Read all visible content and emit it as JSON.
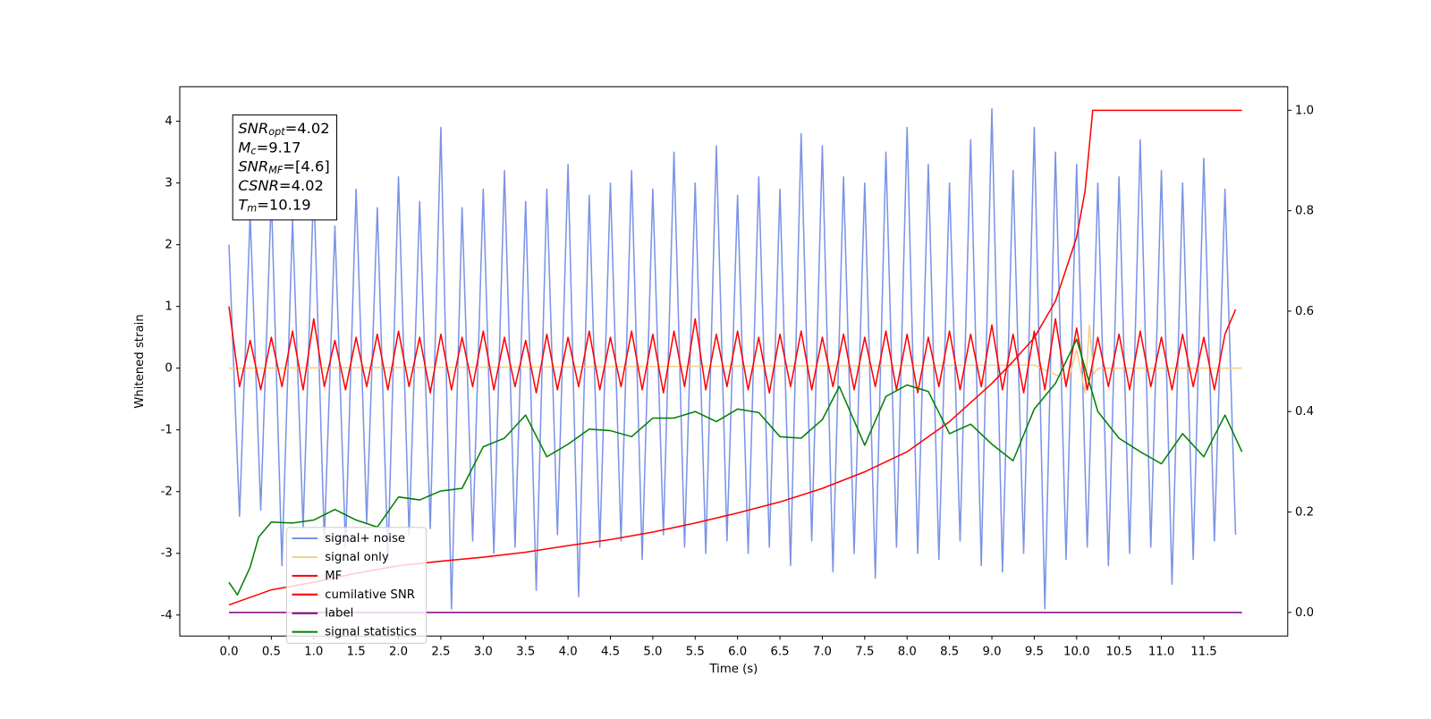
{
  "chart_data": {
    "type": "line",
    "xlabel": "Time (s)",
    "ylabel": "Whitened strain",
    "xlim": [
      -0.58,
      12.49
    ],
    "ylim": [
      -4.34,
      4.56
    ],
    "y2lim": [
      -0.047,
      1.047
    ],
    "xticks": [
      {
        "value": 0,
        "label": "0.0"
      },
      0.5,
      {
        "value": 1,
        "label": "1.0"
      },
      1.5,
      {
        "value": 2,
        "label": "2.0"
      },
      2.5,
      {
        "value": 3,
        "label": "3.0"
      },
      3.5,
      {
        "value": 4,
        "label": "4.0"
      },
      4.5,
      {
        "value": 5,
        "label": "5.0"
      },
      5.5,
      {
        "value": 6,
        "label": "6.0"
      },
      6.5,
      {
        "value": 7,
        "label": "7.0"
      },
      7.5,
      {
        "value": 8,
        "label": "8.0"
      },
      8.5,
      {
        "value": 9,
        "label": "9.0"
      },
      9.5,
      {
        "value": 10,
        "label": "10.0"
      },
      10.5,
      {
        "value": 11,
        "label": "11.0"
      },
      11.5
    ],
    "yticks": [
      -4,
      -3,
      -2,
      -1,
      0,
      1,
      2,
      3,
      4
    ],
    "y2ticks": [
      {
        "value": 0,
        "label": "0.0"
      },
      0.2,
      0.4,
      0.6,
      0.8,
      {
        "value": 1,
        "label": "1.0"
      }
    ],
    "legend": "lower left",
    "annotations": [
      {
        "math": "SNR",
        "sub": "opt",
        "text": "=4.02"
      },
      {
        "math": "M",
        "sub": "c",
        "text": "=9.17"
      },
      {
        "math": "SNR",
        "sub": "MF",
        "text": "=[4.6]"
      },
      {
        "math": "CSNR",
        "text": "=4.02"
      },
      {
        "math": "T",
        "sub": "m",
        "text": "=10.19"
      }
    ],
    "x": [
      0,
      0.125,
      0.25,
      0.375,
      0.5,
      0.625,
      0.75,
      0.875,
      1,
      1.125,
      1.25,
      1.375,
      1.5,
      1.625,
      1.75,
      1.875,
      2,
      2.125,
      2.25,
      2.375,
      2.5,
      2.625,
      2.75,
      2.875,
      3,
      3.125,
      3.25,
      3.375,
      3.5,
      3.625,
      3.75,
      3.875,
      4,
      4.125,
      4.25,
      4.375,
      4.5,
      4.625,
      4.75,
      4.875,
      5,
      5.125,
      5.25,
      5.375,
      5.5,
      5.625,
      5.75,
      5.875,
      6,
      6.125,
      6.25,
      6.375,
      6.5,
      6.625,
      6.75,
      6.875,
      7,
      7.125,
      7.25,
      7.375,
      7.5,
      7.625,
      7.75,
      7.875,
      8,
      8.125,
      8.25,
      8.375,
      8.5,
      8.625,
      8.75,
      8.875,
      9,
      9.125,
      9.25,
      9.375,
      9.5,
      9.625,
      9.75,
      9.875,
      10,
      10.125,
      10.25,
      10.375,
      10.5,
      10.625,
      10.75,
      10.875,
      11,
      11.125,
      11.25,
      11.375,
      11.5,
      11.625,
      11.75,
      11.875
    ],
    "series": [
      {
        "name": "signal+ noise",
        "color": "#7a93e6",
        "values": [
          2.0,
          -2.4,
          2.5,
          -2.3,
          2.8,
          -3.2,
          2.4,
          -2.6,
          3.0,
          -2.8,
          2.3,
          -2.9,
          2.9,
          -2.5,
          2.6,
          -3.1,
          3.1,
          -2.7,
          2.7,
          -2.6,
          3.9,
          -3.9,
          2.6,
          -2.8,
          2.9,
          -3.0,
          3.2,
          -2.9,
          2.7,
          -3.6,
          2.9,
          -2.7,
          3.3,
          -3.7,
          2.8,
          -2.9,
          3.0,
          -2.8,
          3.2,
          -3.1,
          2.9,
          -2.7,
          3.5,
          -2.9,
          3.0,
          -3.0,
          3.6,
          -2.8,
          2.8,
          -3.0,
          3.1,
          -2.9,
          2.9,
          -3.2,
          3.8,
          -2.8,
          3.6,
          -3.3,
          3.1,
          -3.0,
          3.0,
          -3.4,
          3.5,
          -2.9,
          3.9,
          -3.0,
          3.3,
          -3.1,
          3.0,
          -2.8,
          3.7,
          -3.2,
          4.2,
          -3.3,
          3.2,
          -3.0,
          3.9,
          -3.9,
          3.5,
          -3.1,
          3.3,
          -2.9,
          3.0,
          -3.2,
          3.1,
          -3.0,
          3.7,
          -2.9,
          3.2,
          -3.5,
          3.0,
          -3.1,
          3.4,
          -2.8,
          2.9,
          -2.7
        ]
      },
      {
        "name": "signal only",
        "color": "#f6cf85",
        "x": [
          0,
          9.5,
          9.9,
          10.0,
          10.1,
          10.15,
          10.2,
          10.25,
          11.95
        ],
        "values": [
          0,
          0.05,
          -0.2,
          0.3,
          -0.4,
          0.7,
          -0.1,
          0,
          0
        ]
      },
      {
        "name": "MF",
        "color": "#ff0000",
        "values": [
          1.0,
          -0.3,
          0.45,
          -0.35,
          0.5,
          -0.3,
          0.6,
          -0.35,
          0.8,
          -0.3,
          0.45,
          -0.35,
          0.5,
          -0.3,
          0.55,
          -0.35,
          0.6,
          -0.3,
          0.5,
          -0.4,
          0.55,
          -0.35,
          0.5,
          -0.3,
          0.6,
          -0.35,
          0.5,
          -0.3,
          0.45,
          -0.4,
          0.55,
          -0.35,
          0.5,
          -0.3,
          0.6,
          -0.35,
          0.5,
          -0.3,
          0.6,
          -0.35,
          0.55,
          -0.4,
          0.6,
          -0.3,
          0.8,
          -0.35,
          0.55,
          -0.3,
          0.6,
          -0.35,
          0.5,
          -0.4,
          0.55,
          -0.3,
          0.6,
          -0.35,
          0.5,
          -0.3,
          0.55,
          -0.35,
          0.5,
          -0.3,
          0.6,
          -0.35,
          0.55,
          -0.4,
          0.5,
          -0.3,
          0.6,
          -0.35,
          0.55,
          -0.3,
          0.7,
          -0.35,
          0.55,
          -0.4,
          0.6,
          -0.35,
          0.8,
          -0.3,
          0.65,
          -0.35,
          0.5,
          -0.3,
          0.55,
          -0.35,
          0.6,
          -0.3,
          0.5,
          -0.35,
          0.55,
          -0.3,
          0.5,
          -0.35,
          0.55,
          0.95
        ]
      },
      {
        "name": "cumilative SNR",
        "color": "#ff0000",
        "axis": "y2",
        "x": [
          0,
          0.5,
          1,
          1.5,
          2,
          2.5,
          3,
          3.5,
          4,
          4.5,
          5,
          5.5,
          6,
          6.5,
          7,
          7.5,
          8,
          8.5,
          9,
          9.25,
          9.5,
          9.75,
          10,
          10.1,
          10.19,
          11.95
        ],
        "values": [
          0.015,
          0.045,
          0.06,
          0.078,
          0.093,
          0.102,
          0.11,
          0.12,
          0.133,
          0.145,
          0.16,
          0.178,
          0.198,
          0.22,
          0.247,
          0.28,
          0.32,
          0.38,
          0.456,
          0.5,
          0.547,
          0.62,
          0.747,
          0.84,
          1.0,
          1.0
        ]
      },
      {
        "name": "label",
        "color": "#800080",
        "axis": "y2",
        "x": [
          0,
          11.95
        ],
        "values": [
          0,
          0
        ]
      },
      {
        "name": "signal statistics",
        "color": "#008000",
        "axis": "y2",
        "x": [
          0,
          0.1,
          0.25,
          0.35,
          0.5,
          0.75,
          1,
          1.25,
          1.5,
          1.75,
          2,
          2.25,
          2.5,
          2.75,
          3,
          3.25,
          3.5,
          3.75,
          4,
          4.25,
          4.5,
          4.75,
          5,
          5.25,
          5.5,
          5.75,
          6,
          6.25,
          6.5,
          6.75,
          7,
          7.2,
          7.5,
          7.75,
          8,
          8.25,
          8.5,
          8.75,
          9,
          9.25,
          9.5,
          9.75,
          10,
          10.25,
          10.5,
          10.75,
          11,
          11.25,
          11.5,
          11.75,
          11.95
        ],
        "values": [
          0.06,
          0.035,
          0.09,
          0.15,
          0.18,
          0.178,
          0.184,
          0.205,
          0.184,
          0.17,
          0.23,
          0.224,
          0.242,
          0.247,
          0.33,
          0.347,
          0.393,
          0.31,
          0.335,
          0.365,
          0.362,
          0.35,
          0.387,
          0.387,
          0.4,
          0.38,
          0.405,
          0.398,
          0.35,
          0.347,
          0.384,
          0.45,
          0.333,
          0.43,
          0.453,
          0.44,
          0.356,
          0.375,
          0.335,
          0.302,
          0.405,
          0.456,
          0.544,
          0.4,
          0.347,
          0.32,
          0.296,
          0.356,
          0.31,
          0.393,
          0.32
        ]
      }
    ]
  }
}
